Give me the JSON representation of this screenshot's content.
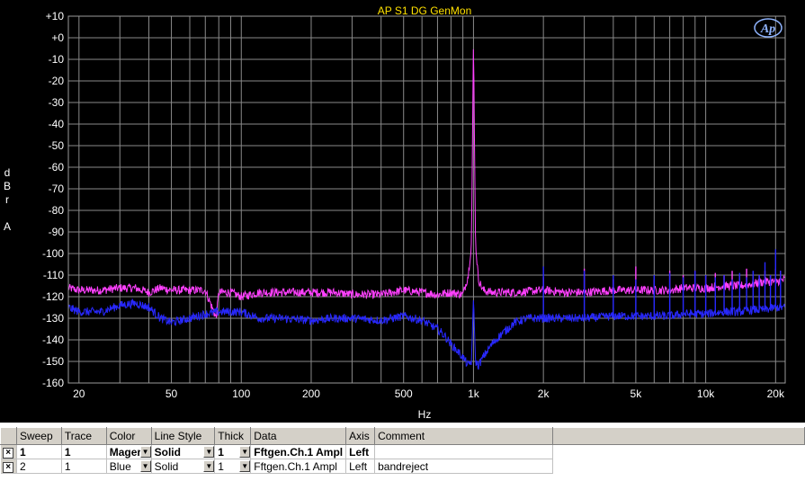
{
  "chart_data": {
    "type": "line",
    "title": "AP S1 DG GenMon",
    "xlabel": "Hz",
    "ylabel": "dBr A",
    "xscale": "log",
    "xlim": [
      18,
      22000
    ],
    "ylim": [
      -160,
      10
    ],
    "grid": true,
    "x_ticks": [
      {
        "v": 20,
        "label": "20"
      },
      {
        "v": 50,
        "label": "50"
      },
      {
        "v": 100,
        "label": "100"
      },
      {
        "v": 200,
        "label": "200"
      },
      {
        "v": 500,
        "label": "500"
      },
      {
        "v": 1000,
        "label": "1k"
      },
      {
        "v": 2000,
        "label": "2k"
      },
      {
        "v": 5000,
        "label": "5k"
      },
      {
        "v": 10000,
        "label": "10k"
      },
      {
        "v": 20000,
        "label": "20k"
      }
    ],
    "y_ticks": [
      "+10",
      "+0",
      "-10",
      "-20",
      "-30",
      "-40",
      "-50",
      "-60",
      "-70",
      "-80",
      "-90",
      "-100",
      "-110",
      "-120",
      "-130",
      "-140",
      "-150",
      "-160"
    ],
    "series": [
      {
        "color": "#ff40ff",
        "x": [
          18,
          20,
          25,
          30,
          35,
          40,
          45,
          50,
          60,
          70,
          78,
          80,
          90,
          100,
          120,
          150,
          200,
          250,
          300,
          400,
          500,
          600,
          700,
          800,
          900,
          950,
          980,
          1000,
          1020,
          1050,
          1100,
          1200,
          1500,
          2000,
          2500,
          3000,
          4000,
          5000,
          6000,
          7000,
          8000,
          9000,
          10000,
          12000,
          14000,
          16000,
          18000,
          20000,
          22000
        ],
        "y": [
          -116,
          -117,
          -117,
          -116,
          -116,
          -118,
          -116,
          -117,
          -117,
          -117,
          -130,
          -118,
          -118,
          -120,
          -118,
          -118,
          -118,
          -118,
          -119,
          -119,
          -117,
          -118,
          -119,
          -118,
          -119,
          -110,
          -95,
          0,
          -95,
          -112,
          -117,
          -118,
          -118,
          -117,
          -118,
          -118,
          -117,
          -117,
          -117,
          -117,
          -116,
          -116,
          -116,
          -115,
          -115,
          -114,
          -113,
          -113,
          -112
        ]
      },
      {
        "color": "#2828ff",
        "x": [
          18,
          20,
          25,
          30,
          35,
          40,
          45,
          50,
          60,
          70,
          80,
          100,
          120,
          150,
          200,
          250,
          300,
          400,
          500,
          600,
          700,
          750,
          800,
          850,
          900,
          950,
          980,
          1000,
          1020,
          1050,
          1100,
          1200,
          1300,
          1400,
          1500,
          1700,
          2000,
          2500,
          3000,
          4000,
          5000,
          6000,
          7000,
          8000,
          9000,
          10000,
          12000,
          14000,
          16000,
          18000,
          20000,
          22000
        ],
        "y": [
          -125,
          -127,
          -127,
          -124,
          -123,
          -125,
          -130,
          -132,
          -130,
          -128,
          -127,
          -127,
          -130,
          -130,
          -131,
          -130,
          -130,
          -131,
          -129,
          -131,
          -135,
          -138,
          -142,
          -145,
          -148,
          -152,
          -150,
          -120,
          -150,
          -152,
          -148,
          -142,
          -138,
          -135,
          -132,
          -130,
          -130,
          -130,
          -130,
          -129,
          -129,
          -129,
          -129,
          -128,
          -128,
          -128,
          -127,
          -127,
          -126,
          -126,
          -125,
          -125
        ]
      }
    ],
    "harmonics": [
      {
        "series": 0,
        "x": [
          2000,
          3000,
          4000,
          5000,
          6000,
          7000,
          8000,
          9000,
          10000,
          11000,
          12000,
          13000,
          14000,
          15000,
          16000,
          17000,
          18000,
          19000,
          20000,
          21000
        ],
        "y": [
          -111,
          -107,
          -112,
          -106,
          -112,
          -108,
          -110,
          -108,
          -110,
          -109,
          -110,
          -108,
          -110,
          -107,
          -110,
          -110,
          -108,
          -110,
          -107,
          -108
        ]
      },
      {
        "series": 1,
        "x": [
          2000,
          3000,
          4000,
          5000,
          6000,
          7000,
          8000,
          9000,
          10000,
          11000,
          12000,
          13000,
          14000,
          15000,
          16000,
          17000,
          18000,
          19000,
          20000,
          21000
        ],
        "y": [
          -106,
          -108,
          -110,
          -112,
          -110,
          -109,
          -111,
          -108,
          -110,
          -111,
          -110,
          -112,
          -109,
          -111,
          -108,
          -110,
          -104,
          -110,
          -98,
          -108
        ]
      }
    ]
  },
  "legend": {
    "headers": [
      "Sweep",
      "Trace",
      "Color",
      "Line Style",
      "Thick",
      "Data",
      "Axis",
      "Comment"
    ],
    "rows": [
      {
        "check": "×",
        "sweep": "1",
        "trace": "1",
        "color": "Mager",
        "line_style": "Solid",
        "thick": "1",
        "data": "Fftgen.Ch.1 Ampl",
        "axis": "Left",
        "comment": ""
      },
      {
        "check": "×",
        "sweep": "2",
        "trace": "1",
        "color": "Blue",
        "line_style": "Solid",
        "thick": "1",
        "data": "Fftgen.Ch.1 Ampl",
        "axis": "Left",
        "comment": "bandreject"
      }
    ],
    "dropdown_glyph": "▼"
  },
  "logo": {
    "text": "Ap",
    "color": "#8fb4ff"
  }
}
